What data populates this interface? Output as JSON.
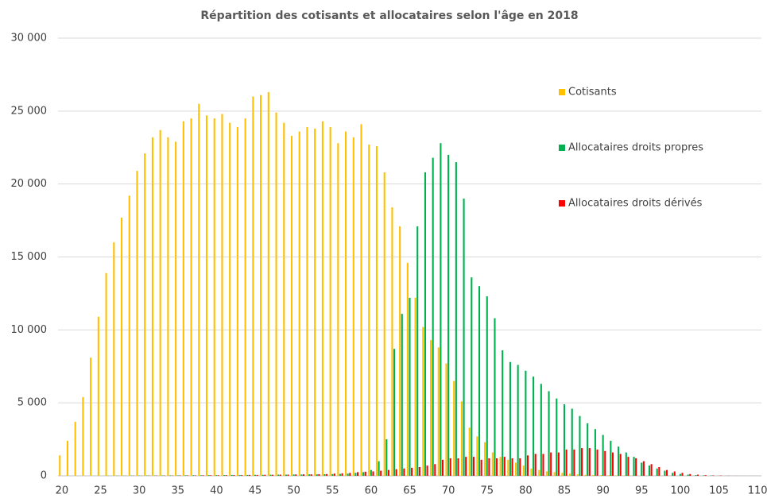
{
  "chart_data": {
    "type": "bar",
    "title": "Répartition des cotisants et allocataires selon l'âge en 2018",
    "x": [
      20,
      21,
      22,
      23,
      24,
      25,
      26,
      27,
      28,
      29,
      30,
      31,
      32,
      33,
      34,
      35,
      36,
      37,
      38,
      39,
      40,
      41,
      42,
      43,
      44,
      45,
      46,
      47,
      48,
      49,
      50,
      51,
      52,
      53,
      54,
      55,
      56,
      57,
      58,
      59,
      60,
      61,
      62,
      63,
      64,
      65,
      66,
      67,
      68,
      69,
      70,
      71,
      72,
      73,
      74,
      75,
      76,
      77,
      78,
      79,
      80,
      81,
      82,
      83,
      84,
      85,
      86,
      87,
      88,
      89,
      90,
      91,
      92,
      93,
      94,
      95,
      96,
      97,
      98,
      99,
      100,
      101,
      102,
      103,
      104,
      105,
      106,
      107,
      108,
      109,
      110
    ],
    "series": [
      {
        "name": "Cotisants",
        "color": "#ffc000",
        "values": [
          1400,
          2400,
          3700,
          5400,
          8100,
          10900,
          13900,
          16000,
          17700,
          19200,
          20900,
          22100,
          23200,
          23700,
          23200,
          22900,
          24300,
          24500,
          25500,
          24700,
          24500,
          24800,
          24200,
          23900,
          24500,
          26000,
          26100,
          26300,
          24900,
          24200,
          23300,
          23600,
          23900,
          23800,
          24300,
          23900,
          22800,
          23600,
          23200,
          24100,
          22700,
          22600,
          20800,
          18400,
          17100,
          14600,
          12200,
          10200,
          9300,
          8800,
          7700,
          6500,
          5100,
          3300,
          2700,
          2300,
          1600,
          1300,
          1100,
          900,
          700,
          500,
          400,
          300,
          250,
          200,
          150,
          100,
          80,
          60,
          50,
          40,
          30,
          20,
          15,
          10,
          8,
          5,
          4,
          3,
          2,
          2,
          1,
          1,
          1,
          0,
          0,
          0,
          0,
          0,
          0
        ]
      },
      {
        "name": "Allocataires droits propres",
        "color": "#00b050",
        "values": [
          0,
          0,
          0,
          0,
          0,
          0,
          10,
          10,
          10,
          20,
          20,
          20,
          20,
          30,
          30,
          30,
          40,
          40,
          40,
          50,
          50,
          50,
          60,
          60,
          60,
          70,
          70,
          80,
          80,
          80,
          90,
          90,
          100,
          100,
          110,
          120,
          130,
          150,
          200,
          250,
          400,
          1000,
          2500,
          8700,
          11100,
          12200,
          17100,
          20800,
          21800,
          22800,
          22000,
          21500,
          19000,
          13600,
          13000,
          12300,
          10800,
          8600,
          7800,
          7600,
          7200,
          6800,
          6300,
          5800,
          5300,
          4900,
          4600,
          4100,
          3600,
          3200,
          2800,
          2400,
          2000,
          1600,
          1300,
          900,
          700,
          500,
          350,
          200,
          130,
          80,
          50,
          30,
          20,
          10,
          5,
          3,
          2,
          1,
          0
        ]
      },
      {
        "name": "Allocataires droits dérivés",
        "color": "#ff0000",
        "values": [
          0,
          0,
          0,
          0,
          0,
          0,
          0,
          10,
          10,
          10,
          10,
          20,
          20,
          20,
          20,
          30,
          30,
          30,
          40,
          40,
          40,
          50,
          50,
          50,
          60,
          60,
          70,
          70,
          80,
          80,
          90,
          100,
          100,
          110,
          120,
          150,
          170,
          200,
          250,
          280,
          300,
          350,
          400,
          450,
          500,
          550,
          600,
          700,
          800,
          1100,
          1200,
          1200,
          1300,
          1300,
          1100,
          1200,
          1200,
          1300,
          1200,
          1200,
          1400,
          1500,
          1500,
          1600,
          1600,
          1800,
          1800,
          1900,
          1900,
          1800,
          1700,
          1600,
          1500,
          1300,
          1200,
          1000,
          800,
          600,
          400,
          300,
          200,
          120,
          80,
          50,
          30,
          20,
          10,
          5,
          3,
          2,
          1
        ]
      }
    ],
    "xlim": [
      19.5,
      110.5
    ],
    "xticks": [
      20,
      25,
      30,
      35,
      40,
      45,
      50,
      55,
      60,
      65,
      70,
      75,
      80,
      85,
      90,
      95,
      100,
      105,
      110
    ],
    "ylim": [
      0,
      30000
    ],
    "yticks": [
      0,
      {
        "value": 5000,
        "label": "5 000"
      },
      {
        "value": 10000,
        "label": "10 000"
      },
      {
        "value": 15000,
        "label": "15 000"
      },
      {
        "value": 20000,
        "label": "20 000"
      },
      {
        "value": 25000,
        "label": "25 000"
      },
      {
        "value": 30000,
        "label": "30 000"
      }
    ],
    "grid": true,
    "legend": "right"
  }
}
